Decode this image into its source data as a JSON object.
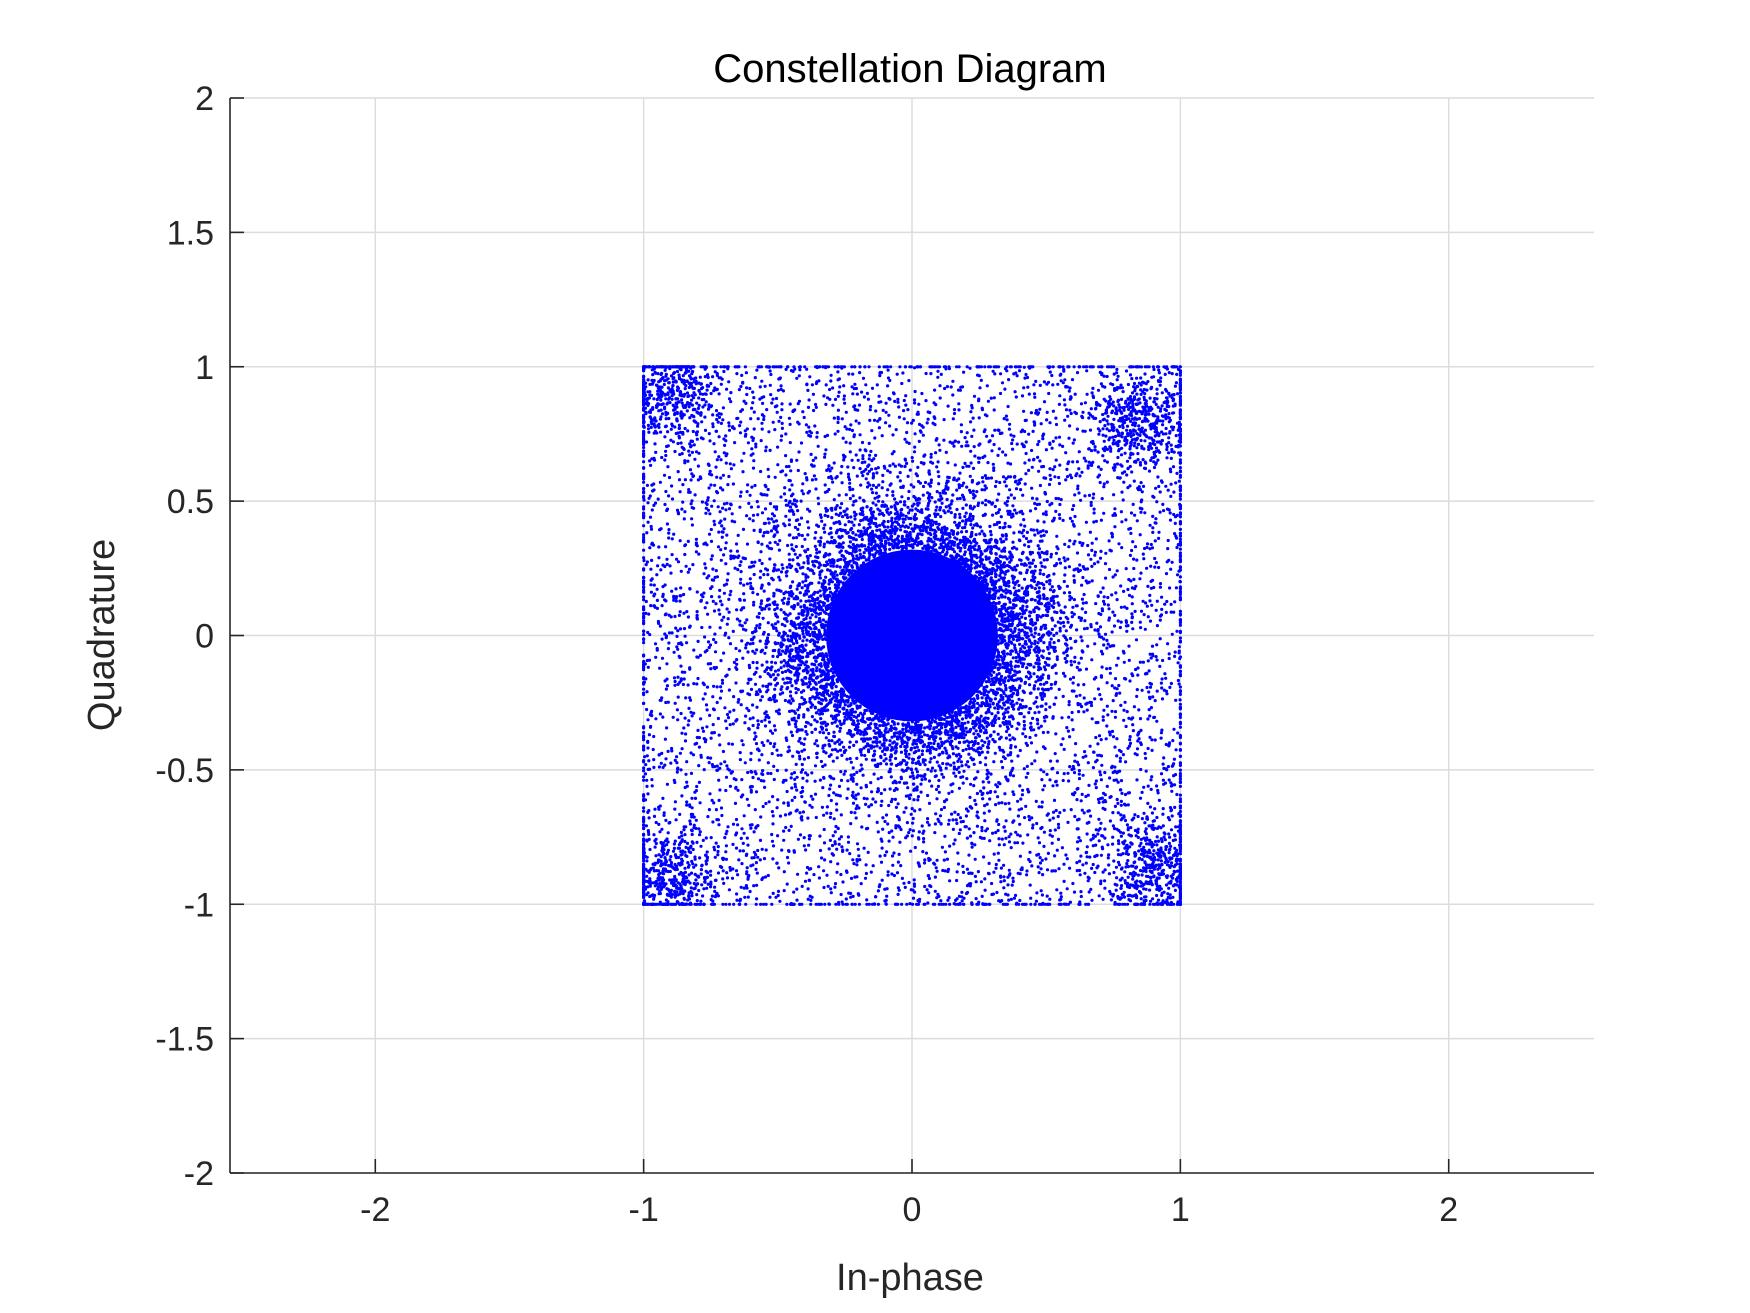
{
  "chart_data": {
    "type": "scatter",
    "title": "Constellation Diagram",
    "xlabel": "In-phase",
    "ylabel": "Quadrature",
    "xlim": [
      -2.5414,
      2.5414
    ],
    "ylim": [
      -2,
      2
    ],
    "xticks": [
      -2,
      -1,
      0,
      1,
      2
    ],
    "xtick_labels": [
      "-2",
      "-1",
      "0",
      "1",
      "2"
    ],
    "yticks": [
      -2,
      -1.5,
      -1,
      -0.5,
      0,
      0.5,
      1,
      1.5,
      2
    ],
    "ytick_labels": [
      "-2",
      "-1.5",
      "-1",
      "-0.5",
      "0",
      "0.5",
      "1",
      "1.5",
      "2"
    ],
    "grid": true,
    "legend": "none",
    "marker_color": "#0000ff",
    "series": [
      {
        "description_of_distribution": "dense central cluster of radius ~0.35 around (0,0); sparse uniform scatter across [-1,1]x[-1,1]; dense clusters near the four corners; points clipped onto the square border at |I|=1 and |Q|=1",
        "dense_core": {
          "center": [
            0,
            0
          ],
          "radius": 0.32,
          "halo_radius": 0.42
        },
        "region": {
          "x": [
            -1,
            1
          ],
          "y": [
            -1,
            1
          ]
        },
        "corner_clusters": [
          [
            -0.9,
            0.9
          ],
          [
            0.85,
            0.8
          ],
          [
            -0.9,
            -0.9
          ],
          [
            0.9,
            -0.85
          ]
        ]
      }
    ]
  }
}
